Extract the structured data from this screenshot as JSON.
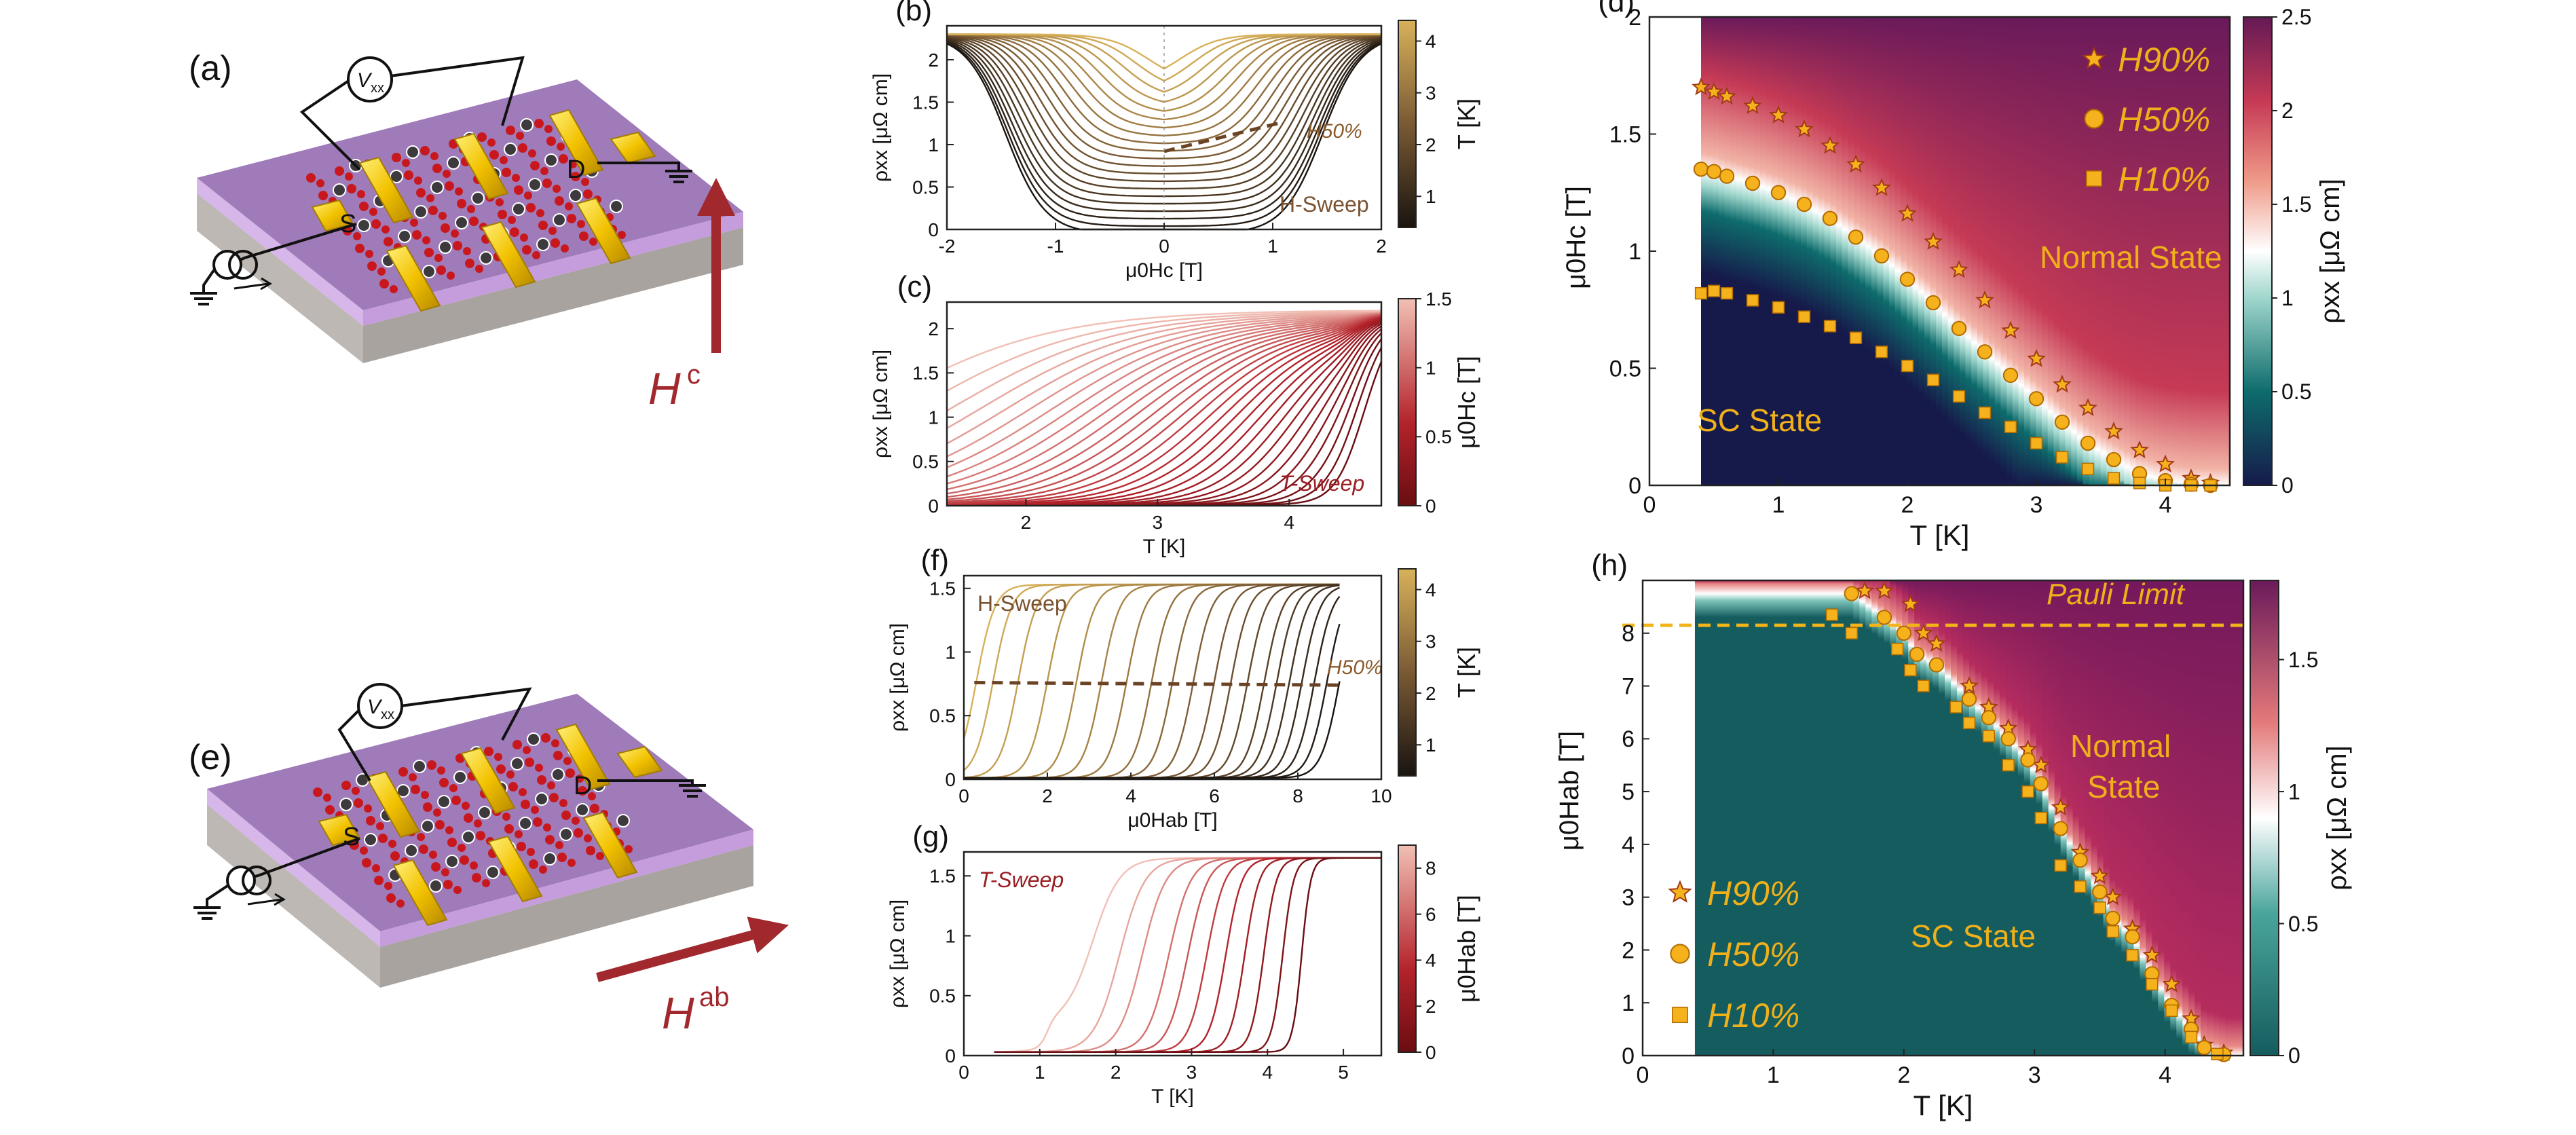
{
  "device_c": {
    "panel_label": "(a)",
    "voltmeter_label": "V",
    "voltmeter_sub": "xx",
    "source_label": "S",
    "drain_label": "D",
    "field_label": "H",
    "field_sup": "c"
  },
  "device_ab": {
    "panel_label": "(e)",
    "voltmeter_label": "V",
    "voltmeter_sub": "xx",
    "source_label": "S",
    "drain_label": "D",
    "field_label": "H",
    "field_sup": "ab"
  },
  "colors": {
    "slab_top": "#9a74b3",
    "slab_edge": "#c9a6e0",
    "substrate": "#c7c3bf",
    "gold": "#f2c200",
    "atom_red": "#c8181e",
    "atom_dark": "#3d3a3d",
    "arrow": "#a1282c",
    "marker": "#f5b21c",
    "marker_edge": "#b26a00",
    "annotation": "#f0b01a"
  },
  "chart_data": [
    {
      "id": "b",
      "panel_label": "(b)",
      "type": "line",
      "title": "",
      "xlabel": "μ0Hc [T]",
      "ylabel": "ρxx [μΩ cm]",
      "xlim": [
        -2,
        2
      ],
      "ylim": [
        0,
        2.4
      ],
      "xticks": [
        "-2",
        "-1",
        "0",
        "1",
        "2"
      ],
      "yticks": [
        "0",
        "0.5",
        "1",
        "1.5",
        "2"
      ],
      "series_description": "symmetric H-sweep curves for T from 0.4 K to 4.4 K",
      "temperatures": [
        0.4,
        0.6,
        0.8,
        1.0,
        1.2,
        1.4,
        1.6,
        1.8,
        2.0,
        2.2,
        2.4,
        2.6,
        2.8,
        3.0,
        3.2,
        3.4,
        3.6,
        3.8,
        4.0,
        4.2,
        4.4
      ],
      "h50_line": {
        "x": [
          0.0,
          1.05
        ],
        "y": [
          0.92,
          1.25
        ]
      },
      "annotations": [
        "H50%",
        "H-Sweep"
      ],
      "colorbar": {
        "label": "T [K]",
        "ticks": [
          "1",
          "2",
          "3",
          "4"
        ],
        "range": [
          0.4,
          4.4
        ]
      }
    },
    {
      "id": "c",
      "panel_label": "(c)",
      "type": "line",
      "title": "",
      "xlabel": "T [K]",
      "ylabel": "ρxx [μΩ cm]",
      "xlim": [
        1.4,
        4.7
      ],
      "ylim": [
        0,
        2.3
      ],
      "xticks": [
        "2",
        "3",
        "4"
      ],
      "yticks": [
        "0",
        "0.5",
        "1",
        "1.5",
        "2"
      ],
      "fields": [
        0.0,
        0.05,
        0.1,
        0.15,
        0.2,
        0.25,
        0.3,
        0.35,
        0.4,
        0.45,
        0.5,
        0.55,
        0.6,
        0.65,
        0.7,
        0.75,
        0.8,
        0.85,
        0.9,
        0.95,
        1.0,
        1.05,
        1.1,
        1.15,
        1.2,
        1.25,
        1.3,
        1.35,
        1.4,
        1.45,
        1.5
      ],
      "annotations": [
        "T-Sweep"
      ],
      "colorbar": {
        "label": "μ0Hc [T]",
        "ticks": [
          "0",
          "0.5",
          "1",
          "1.5"
        ],
        "range": [
          0,
          1.5
        ]
      }
    },
    {
      "id": "d",
      "panel_label": "(d)",
      "type": "heatmap",
      "title": "",
      "xlabel": "T [K]",
      "ylabel": "μ0Hc [T]",
      "xlim": [
        0,
        4.5
      ],
      "ylim": [
        0,
        2
      ],
      "xticks": [
        "0",
        "1",
        "2",
        "3",
        "4"
      ],
      "yticks": [
        "0",
        "0.5",
        "1",
        "1.5",
        "2"
      ],
      "series": [
        {
          "name": "H90%",
          "marker": "star",
          "x": [
            0.4,
            0.5,
            0.6,
            0.8,
            1.0,
            1.2,
            1.4,
            1.6,
            1.8,
            2.0,
            2.2,
            2.4,
            2.6,
            2.8,
            3.0,
            3.2,
            3.4,
            3.6,
            3.8,
            4.0,
            4.2,
            4.35
          ],
          "y": [
            1.7,
            1.68,
            1.66,
            1.62,
            1.58,
            1.52,
            1.45,
            1.37,
            1.27,
            1.16,
            1.04,
            0.92,
            0.79,
            0.66,
            0.54,
            0.43,
            0.33,
            0.23,
            0.15,
            0.09,
            0.03,
            0.01
          ]
        },
        {
          "name": "H50%",
          "marker": "circle",
          "x": [
            0.4,
            0.5,
            0.6,
            0.8,
            1.0,
            1.2,
            1.4,
            1.6,
            1.8,
            2.0,
            2.2,
            2.4,
            2.6,
            2.8,
            3.0,
            3.2,
            3.4,
            3.6,
            3.8,
            4.0,
            4.2,
            4.35
          ],
          "y": [
            1.35,
            1.34,
            1.32,
            1.29,
            1.25,
            1.2,
            1.14,
            1.06,
            0.98,
            0.88,
            0.78,
            0.67,
            0.57,
            0.47,
            0.37,
            0.27,
            0.18,
            0.11,
            0.05,
            0.02,
            0.005,
            0.0
          ]
        },
        {
          "name": "H10%",
          "marker": "square",
          "x": [
            0.4,
            0.5,
            0.6,
            0.8,
            1.0,
            1.2,
            1.4,
            1.6,
            1.8,
            2.0,
            2.2,
            2.4,
            2.6,
            2.8,
            3.0,
            3.2,
            3.4,
            3.6,
            3.8,
            4.0,
            4.2,
            4.35
          ],
          "y": [
            0.82,
            0.83,
            0.82,
            0.79,
            0.76,
            0.72,
            0.68,
            0.63,
            0.57,
            0.51,
            0.45,
            0.38,
            0.31,
            0.25,
            0.18,
            0.12,
            0.07,
            0.03,
            0.01,
            0.0,
            0.0,
            0.0
          ]
        }
      ],
      "annotations": [
        "Normal State",
        "SC State"
      ],
      "colorbar": {
        "label": "ρxx [μΩ cm]",
        "ticks": [
          "0",
          "0.5",
          "1",
          "1.5",
          "2",
          "2.5"
        ],
        "range": [
          0,
          2.5
        ]
      },
      "legend_position": "top-right"
    },
    {
      "id": "f",
      "panel_label": "(f)",
      "type": "line",
      "title": "",
      "xlabel": "μ0Hab [T]",
      "ylabel": "ρxx [μΩ cm]",
      "xlim": [
        0,
        10
      ],
      "ylim": [
        0,
        1.6
      ],
      "xticks": [
        "0",
        "2",
        "4",
        "6",
        "8",
        "10"
      ],
      "yticks": [
        "0",
        "0.5",
        "1",
        "1.5"
      ],
      "transition_fields": [
        0.3,
        0.7,
        1.3,
        2.0,
        2.7,
        3.3,
        3.9,
        4.5,
        5.0,
        5.5,
        6.0,
        6.4,
        6.8,
        7.2,
        7.5,
        7.8,
        8.1,
        8.4,
        8.7,
        9.0
      ],
      "h50_line": {
        "x": [
          0.25,
          9.0
        ],
        "y": [
          0.76,
          0.74
        ]
      },
      "annotations": [
        "H-Sweep",
        "H50%"
      ],
      "colorbar": {
        "label": "T [K]",
        "ticks": [
          "1",
          "2",
          "3",
          "4"
        ],
        "range": [
          0.4,
          4.4
        ]
      }
    },
    {
      "id": "g",
      "panel_label": "(g)",
      "type": "line",
      "title": "",
      "xlabel": "T [K]",
      "ylabel": "ρxx [μΩ cm]",
      "xlim": [
        0,
        5.5
      ],
      "ylim": [
        0,
        1.7
      ],
      "xticks": [
        "0",
        "1",
        "2",
        "3",
        "4",
        "5"
      ],
      "yticks": [
        "0",
        "0.5",
        "1",
        "1.5"
      ],
      "transition_temps": [
        1.7,
        2.05,
        2.35,
        2.7,
        2.95,
        3.2,
        3.45,
        3.7,
        3.95,
        4.2,
        4.45
      ],
      "annotations": [
        "T-Sweep"
      ],
      "colorbar": {
        "label": "μ0Hab [T]",
        "ticks": [
          "0",
          "2",
          "4",
          "6",
          "8"
        ],
        "range": [
          0,
          9
        ]
      }
    },
    {
      "id": "h",
      "panel_label": "(h)",
      "type": "heatmap",
      "title": "",
      "xlabel": "T [K]",
      "ylabel": "μ0Hab [T]",
      "xlim": [
        0,
        4.6
      ],
      "ylim": [
        0,
        9
      ],
      "xticks": [
        "0",
        "1",
        "2",
        "3",
        "4"
      ],
      "yticks": [
        "0",
        "1",
        "2",
        "3",
        "4",
        "5",
        "6",
        "7",
        "8"
      ],
      "pauli_limit": 8.15,
      "series": [
        {
          "name": "H90%",
          "marker": "star",
          "x": [
            1.7,
            1.85,
            2.05,
            2.15,
            2.25,
            2.5,
            2.65,
            2.8,
            2.95,
            3.05,
            3.2,
            3.35,
            3.5,
            3.6,
            3.75,
            3.9,
            4.05,
            4.2,
            4.3,
            4.45
          ],
          "y": [
            8.8,
            8.8,
            8.55,
            8.0,
            7.8,
            7.0,
            6.6,
            6.2,
            5.8,
            5.5,
            4.7,
            3.85,
            3.4,
            3.0,
            2.4,
            1.9,
            1.35,
            0.7,
            0.2,
            0.05
          ]
        },
        {
          "name": "H50%",
          "marker": "circle",
          "x": [
            1.6,
            1.85,
            2.0,
            2.1,
            2.25,
            2.5,
            2.65,
            2.8,
            2.95,
            3.05,
            3.2,
            3.35,
            3.5,
            3.6,
            3.75,
            3.9,
            4.05,
            4.2,
            4.3,
            4.45
          ],
          "y": [
            8.75,
            8.3,
            8.0,
            7.6,
            7.4,
            6.75,
            6.4,
            6.0,
            5.6,
            5.15,
            4.3,
            3.7,
            3.1,
            2.6,
            2.25,
            1.55,
            0.95,
            0.5,
            0.15,
            0.02
          ]
        },
        {
          "name": "H10%",
          "marker": "square",
          "x": [
            1.45,
            1.6,
            1.95,
            2.05,
            2.15,
            2.4,
            2.5,
            2.65,
            2.8,
            2.95,
            3.05,
            3.2,
            3.35,
            3.5,
            3.6,
            3.75,
            3.9,
            4.05,
            4.2,
            4.4
          ],
          "y": [
            8.35,
            8.0,
            7.7,
            7.3,
            7.0,
            6.6,
            6.3,
            6.05,
            5.5,
            5.0,
            4.5,
            3.6,
            3.2,
            2.8,
            2.35,
            1.9,
            1.35,
            0.85,
            0.35,
            0.03
          ]
        }
      ],
      "annotations": [
        "Pauli Limit",
        "Normal State",
        "SC State"
      ],
      "colorbar": {
        "label": "ρxx [μΩ cm]",
        "ticks": [
          "0",
          "0.5",
          "1",
          "1.5"
        ],
        "range": [
          0,
          1.8
        ]
      },
      "legend_position": "bottom-left"
    }
  ]
}
